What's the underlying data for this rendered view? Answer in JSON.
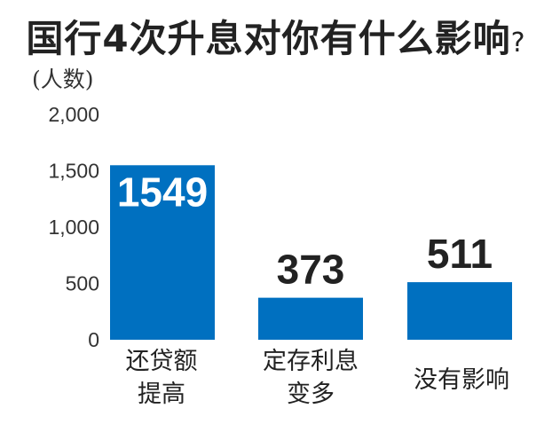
{
  "title": {
    "main": "国行4次升息对你有什么影响",
    "question_mark": "?"
  },
  "colors": {
    "bar": "#0070C0",
    "label_inside": "#ffffff",
    "label_outside": "#222222"
  },
  "chart_data": {
    "type": "bar",
    "title": "国行4次升息对你有什么影响?",
    "ylabel": "(人数)",
    "xlabel": "",
    "ylim": [
      0,
      2000
    ],
    "yticks": [
      "2,000",
      "1,500",
      "1,000",
      "500",
      "0"
    ],
    "ytick_values": [
      2000,
      1500,
      1000,
      500,
      0
    ],
    "categories": [
      [
        "还贷额",
        "提高"
      ],
      [
        "定存利息",
        "变多"
      ],
      [
        "没有影响"
      ]
    ],
    "values": [
      1549,
      373,
      511
    ],
    "data_labels": [
      "1549",
      "373",
      "511"
    ],
    "grid": false,
    "legend": "none"
  }
}
